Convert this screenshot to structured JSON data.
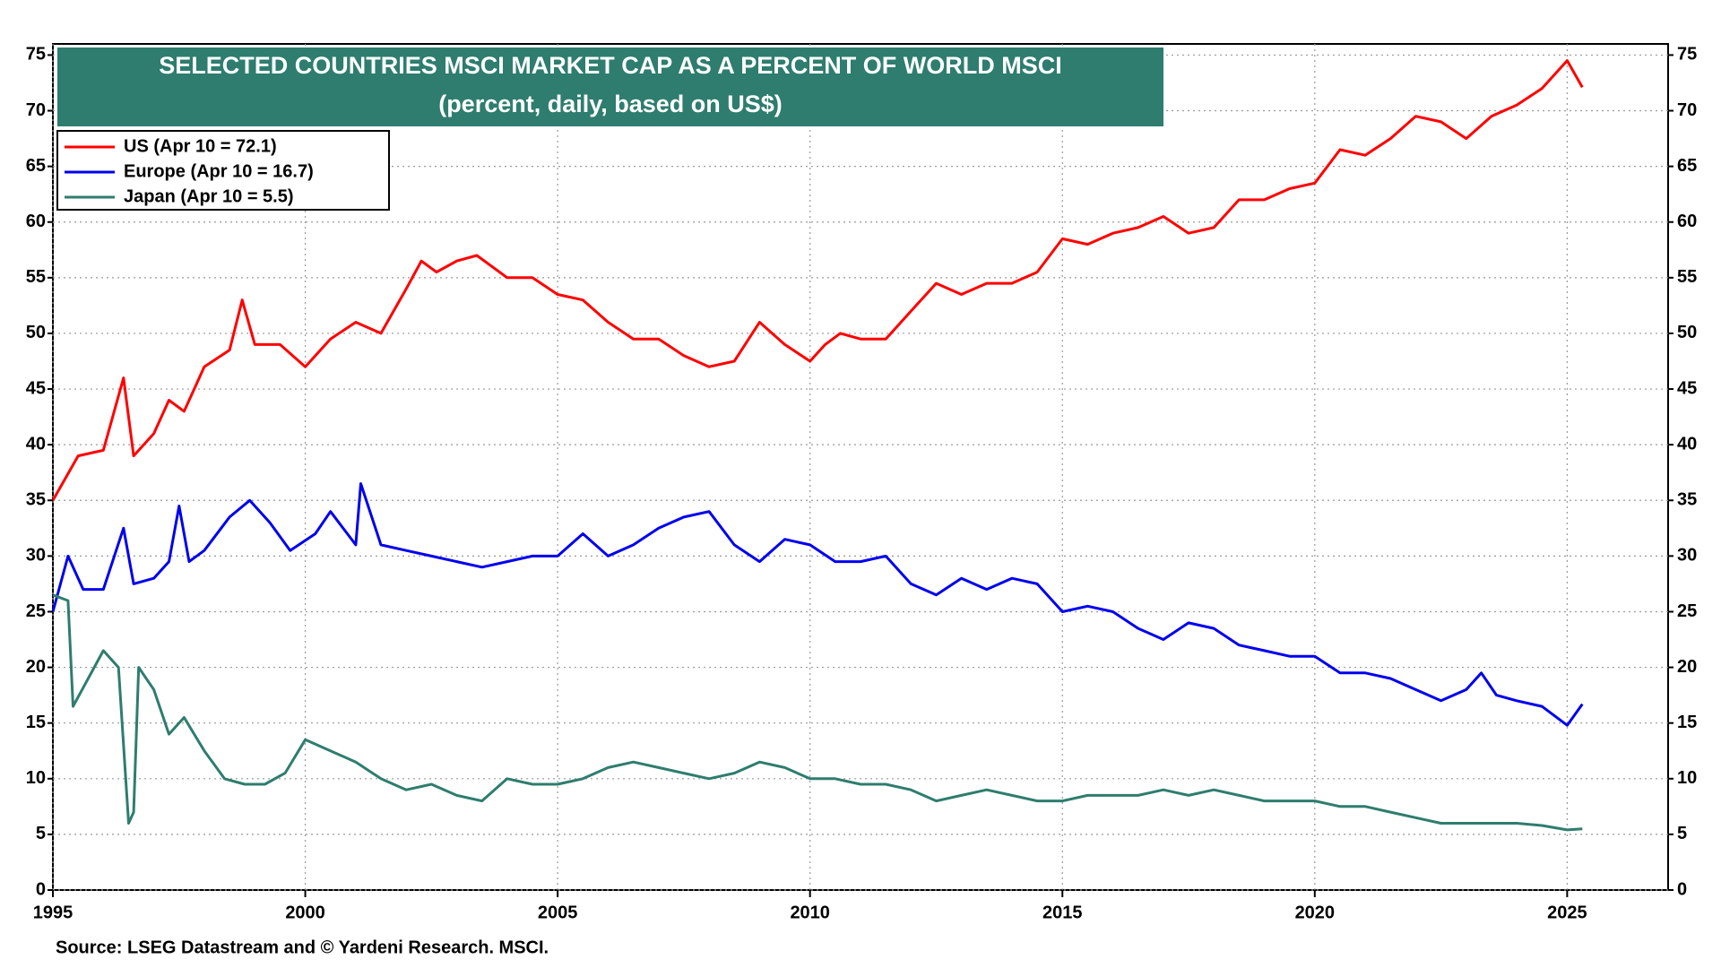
{
  "chart_data": {
    "type": "line",
    "title": "SELECTED COUNTRIES MSCI MARKET CAP AS A PERCENT OF WORLD MSCI",
    "subtitle": "(percent, daily, based on US$)",
    "source": "Source: LSEG Datastream and © Yardeni Research. MSCI.",
    "xlim": [
      1995,
      2027
    ],
    "xticks": [
      1995,
      2000,
      2005,
      2010,
      2015,
      2020,
      2025
    ],
    "ylim": [
      0,
      76
    ],
    "yticks": [
      0,
      5,
      10,
      15,
      20,
      25,
      30,
      35,
      40,
      45,
      50,
      55,
      60,
      65,
      70,
      75
    ],
    "y2lim": [
      0,
      76
    ],
    "y2ticks": [
      0,
      5,
      10,
      15,
      20,
      25,
      30,
      35,
      40,
      45,
      50,
      55,
      60,
      65,
      70,
      75
    ],
    "grid": true,
    "legend": "upper left",
    "series": [
      {
        "name": "US (Apr 10 = 72.1)",
        "color": "#ff0000",
        "x": [
          1995.0,
          1995.5,
          1996.0,
          1996.4,
          1996.6,
          1997.0,
          1997.3,
          1997.6,
          1998.0,
          1998.5,
          1998.75,
          1999.0,
          1999.5,
          2000.0,
          2000.5,
          2001.0,
          2001.5,
          2002.0,
          2002.3,
          2002.6,
          2003.0,
          2003.4,
          2004.0,
          2004.5,
          2005.0,
          2005.5,
          2006.0,
          2006.5,
          2007.0,
          2007.5,
          2008.0,
          2008.5,
          2009.0,
          2009.5,
          2010.0,
          2010.3,
          2010.6,
          2011.0,
          2011.5,
          2012.0,
          2012.5,
          2013.0,
          2013.5,
          2014.0,
          2014.5,
          2015.0,
          2015.5,
          2016.0,
          2016.5,
          2017.0,
          2017.5,
          2018.0,
          2018.5,
          2019.0,
          2019.5,
          2020.0,
          2020.5,
          2021.0,
          2021.5,
          2022.0,
          2022.5,
          2023.0,
          2023.5,
          2024.0,
          2024.5,
          2025.0,
          2025.3
        ],
        "values": [
          35,
          39,
          39.5,
          46,
          39,
          41,
          44,
          43,
          47,
          48.5,
          53,
          49,
          49,
          47,
          49.5,
          51,
          50,
          54,
          56.5,
          55.5,
          56.5,
          57,
          55,
          55,
          53.5,
          53,
          51,
          49.5,
          49.5,
          48,
          47,
          47.5,
          51,
          49,
          47.5,
          49,
          50,
          49.5,
          49.5,
          52,
          54.5,
          53.5,
          54.5,
          54.5,
          55.5,
          58.5,
          58,
          59,
          59.5,
          60.5,
          59,
          59.5,
          62,
          62,
          63,
          63.5,
          66.5,
          66,
          67.5,
          69.5,
          69,
          67.5,
          69.5,
          70.5,
          72,
          74.5,
          72.1
        ]
      },
      {
        "name": "Europe (Apr 10 = 16.7)",
        "color": "#0000ee",
        "x": [
          1995.0,
          1995.3,
          1995.6,
          1996.0,
          1996.4,
          1996.6,
          1997.0,
          1997.3,
          1997.5,
          1997.7,
          1998.0,
          1998.5,
          1998.9,
          1999.3,
          1999.7,
          2000.2,
          2000.5,
          2001.0,
          2001.1,
          2001.5,
          2002.0,
          2002.5,
          2003.0,
          2003.5,
          2004.0,
          2004.5,
          2005.0,
          2005.5,
          2006.0,
          2006.5,
          2007.0,
          2007.5,
          2008.0,
          2008.5,
          2009.0,
          2009.5,
          2010.0,
          2010.5,
          2011.0,
          2011.5,
          2012.0,
          2012.5,
          2013.0,
          2013.5,
          2014.0,
          2014.5,
          2015.0,
          2015.5,
          2016.0,
          2016.5,
          2017.0,
          2017.5,
          2018.0,
          2018.5,
          2019.0,
          2019.5,
          2020.0,
          2020.5,
          2021.0,
          2021.5,
          2022.0,
          2022.5,
          2023.0,
          2023.3,
          2023.6,
          2024.0,
          2024.5,
          2025.0,
          2025.3
        ],
        "values": [
          25,
          30,
          27,
          27,
          32.5,
          27.5,
          28,
          29.5,
          34.5,
          29.5,
          30.5,
          33.5,
          35,
          33,
          30.5,
          32,
          34,
          31,
          36.5,
          31,
          30.5,
          30,
          29.5,
          29,
          29.5,
          30,
          30,
          32,
          30,
          31,
          32.5,
          33.5,
          34,
          31,
          29.5,
          31.5,
          31,
          29.5,
          29.5,
          30,
          27.5,
          26.5,
          28,
          27,
          28,
          27.5,
          25,
          25.5,
          25,
          23.5,
          22.5,
          24,
          23.5,
          22,
          21.5,
          21,
          21,
          19.5,
          19.5,
          19,
          18,
          17,
          18,
          19.5,
          17.5,
          17,
          16.5,
          14.8,
          16.7
        ]
      },
      {
        "name": "Japan (Apr 10 = 5.5)",
        "color": "#2e7d6e",
        "x": [
          1995.0,
          1995.3,
          1995.4,
          1995.7,
          1996.0,
          1996.3,
          1996.5,
          1996.6,
          1996.7,
          1997.0,
          1997.3,
          1997.6,
          1998.0,
          1998.4,
          1998.8,
          1999.2,
          1999.6,
          2000.0,
          2000.5,
          2001.0,
          2001.5,
          2002.0,
          2002.5,
          2003.0,
          2003.5,
          2004.0,
          2004.5,
          2005.0,
          2005.5,
          2006.0,
          2006.5,
          2007.0,
          2007.5,
          2008.0,
          2008.5,
          2009.0,
          2009.5,
          2010.0,
          2010.5,
          2011.0,
          2011.5,
          2012.0,
          2012.5,
          2013.0,
          2013.5,
          2014.0,
          2014.5,
          2015.0,
          2015.5,
          2016.0,
          2016.5,
          2017.0,
          2017.5,
          2018.0,
          2018.5,
          2019.0,
          2019.5,
          2020.0,
          2020.5,
          2021.0,
          2021.5,
          2022.0,
          2022.5,
          2023.0,
          2023.5,
          2024.0,
          2024.5,
          2025.0,
          2025.3
        ],
        "values": [
          26.5,
          26,
          16.5,
          19,
          21.5,
          20,
          6,
          7,
          20,
          18,
          14,
          15.5,
          12.5,
          10,
          9.5,
          9.5,
          10.5,
          13.5,
          12.5,
          11.5,
          10,
          9,
          9.5,
          8.5,
          8,
          10,
          9.5,
          9.5,
          10,
          11,
          11.5,
          11,
          10.5,
          10,
          10.5,
          11.5,
          11,
          10,
          10,
          9.5,
          9.5,
          9,
          8,
          8.5,
          9,
          8.5,
          8,
          8,
          8.5,
          8.5,
          8.5,
          9,
          8.5,
          9,
          8.5,
          8,
          8,
          8,
          7.5,
          7.5,
          7,
          6.5,
          6,
          6,
          6,
          6,
          5.8,
          5.4,
          5.5
        ]
      }
    ]
  }
}
